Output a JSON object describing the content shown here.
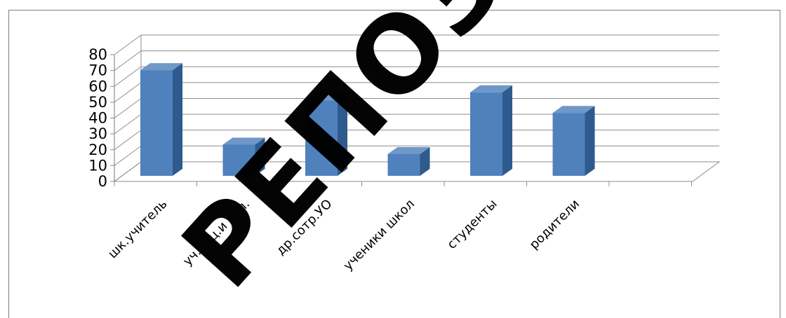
{
  "chart_data": {
    "type": "bar",
    "categories": [
      "шк.учитель",
      "уч.лиц.и кол.",
      "др.сотр.УО",
      "ученики школ",
      "студенты",
      "родители"
    ],
    "values": [
      72,
      25,
      53,
      19,
      58,
      45
    ],
    "ylim": [
      0,
      80
    ],
    "yticks": [
      0,
      10,
      20,
      30,
      40,
      50,
      60,
      70,
      80
    ],
    "grid": true,
    "legend": "none",
    "three_d": true,
    "bar_color": "#4f81bd",
    "bar_side_color": "#2f5a8e",
    "bar_top_color": "#6f97c8"
  },
  "watermark": {
    "text": "РЕПОЗИТОРИЙ"
  }
}
